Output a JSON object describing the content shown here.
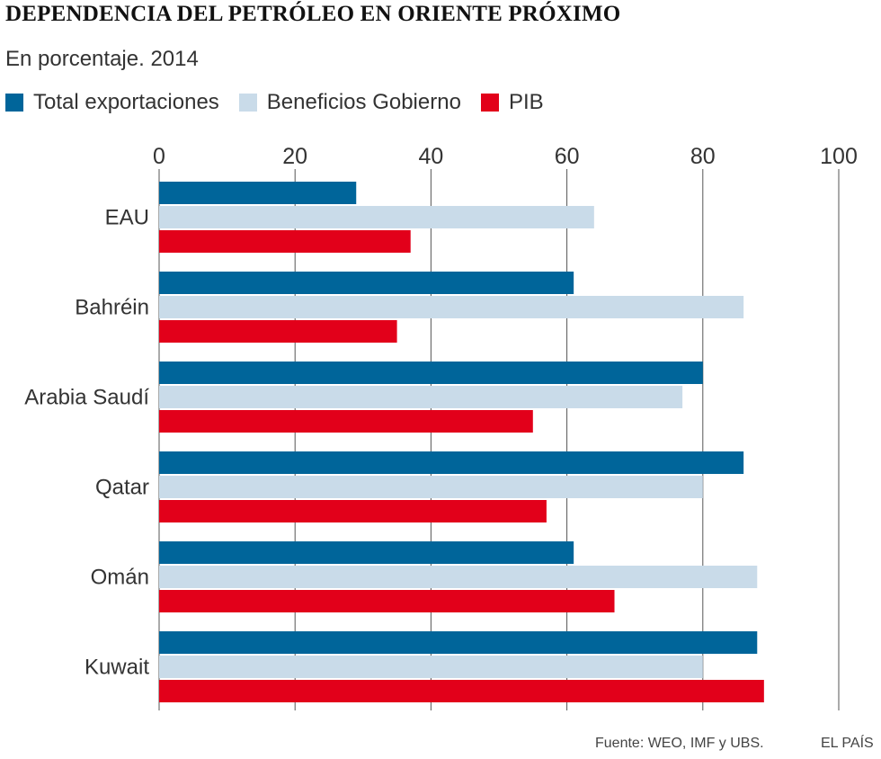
{
  "chart_data": {
    "type": "bar",
    "orientation": "horizontal",
    "title": "DEPENDENCIA DEL PETRÓLEO EN ORIENTE PRÓXIMO",
    "subtitle": "En porcentaje. 2014",
    "categories": [
      "EAU",
      "Bahréin",
      "Arabia Saudí",
      "Qatar",
      "Omán",
      "Kuwait"
    ],
    "series": [
      {
        "name": "Total exportaciones",
        "color": "#00659a",
        "values": [
          29,
          61,
          80,
          86,
          61,
          88
        ]
      },
      {
        "name": "Beneficios Gobierno",
        "color": "#c9dbe9",
        "values": [
          64,
          86,
          77,
          80,
          88,
          80
        ]
      },
      {
        "name": "PIB",
        "color": "#e2001a",
        "values": [
          37,
          35,
          55,
          57,
          67,
          89
        ]
      }
    ],
    "xlim": [
      0,
      100
    ],
    "xticks": [
      "0",
      "20",
      "40",
      "60",
      "80",
      "100"
    ],
    "grid": true,
    "legend_position": "top-left"
  },
  "footer": {
    "source": "Fuente: WEO, IMF y UBS.",
    "brand": "EL PAÍS"
  }
}
